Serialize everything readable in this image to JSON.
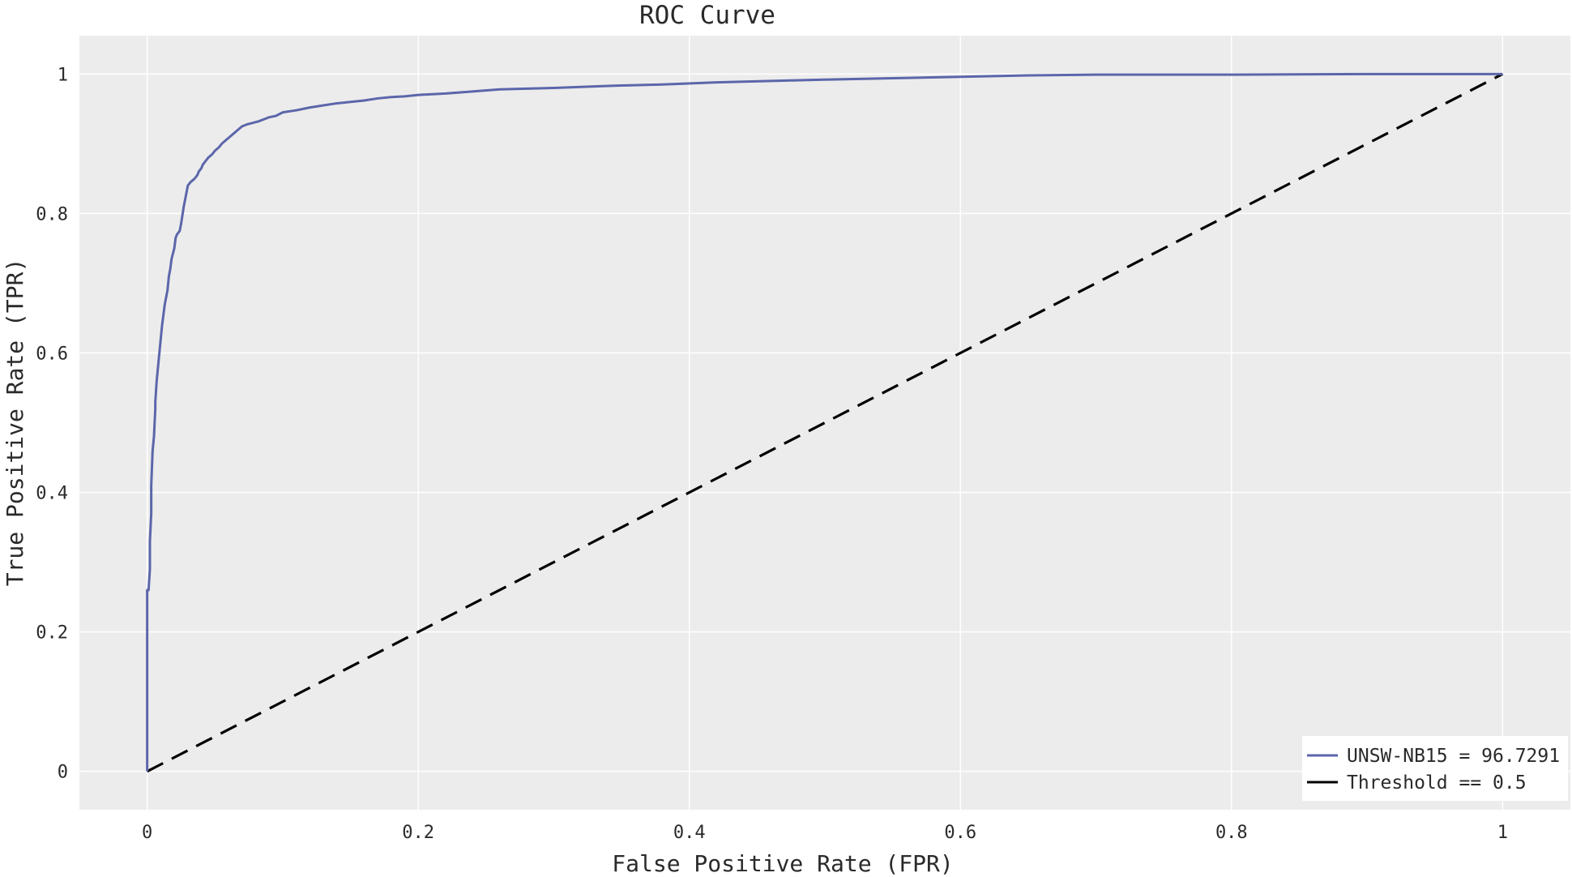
{
  "chart_data": {
    "type": "line",
    "title": "ROC Curve",
    "xlabel": "False Positive Rate (FPR)",
    "ylabel": "True Positive Rate (TPR)",
    "xlim": [
      -0.05,
      1.05
    ],
    "ylim": [
      -0.055,
      1.055
    ],
    "grid": true,
    "legend_position": "bottom-right",
    "background_color": "#ececec",
    "xticks": [
      0,
      0.2,
      0.4,
      0.6,
      0.8,
      1
    ],
    "xtick_labels": [
      "0",
      "0.2",
      "0.4",
      "0.6",
      "0.8",
      "1"
    ],
    "yticks": [
      0,
      0.2,
      0.4,
      0.6,
      0.8,
      1
    ],
    "ytick_labels": [
      "0",
      "0.2",
      "0.4",
      "0.6",
      "0.8",
      "1"
    ],
    "series": [
      {
        "name": "UNSW-NB15 = 96.7291",
        "color": "#5b66aa",
        "style": "solid",
        "x": [
          0,
          0,
          0.001,
          0.002,
          0.002,
          0.003,
          0.003,
          0.004,
          0.005,
          0.006,
          0.006,
          0.007,
          0.008,
          0.009,
          0.01,
          0.011,
          0.012,
          0.013,
          0.015,
          0.016,
          0.017,
          0.018,
          0.02,
          0.021,
          0.022,
          0.024,
          0.025,
          0.027,
          0.028,
          0.03,
          0.032,
          0.035,
          0.037,
          0.038,
          0.04,
          0.041,
          0.043,
          0.045,
          0.048,
          0.05,
          0.053,
          0.055,
          0.058,
          0.061,
          0.064,
          0.067,
          0.07,
          0.074,
          0.078,
          0.082,
          0.086,
          0.09,
          0.095,
          0.1,
          0.11,
          0.12,
          0.13,
          0.14,
          0.15,
          0.16,
          0.17,
          0.18,
          0.19,
          0.2,
          0.22,
          0.24,
          0.26,
          0.3,
          0.34,
          0.38,
          0.42,
          0.46,
          0.5,
          0.55,
          0.6,
          0.65,
          0.7,
          0.8,
          0.9,
          1.0
        ],
        "y": [
          0,
          0.26,
          0.26,
          0.29,
          0.33,
          0.37,
          0.41,
          0.46,
          0.48,
          0.52,
          0.53,
          0.56,
          0.58,
          0.6,
          0.62,
          0.64,
          0.655,
          0.67,
          0.69,
          0.71,
          0.72,
          0.735,
          0.75,
          0.765,
          0.77,
          0.775,
          0.785,
          0.81,
          0.82,
          0.84,
          0.845,
          0.85,
          0.855,
          0.86,
          0.865,
          0.87,
          0.875,
          0.88,
          0.885,
          0.89,
          0.895,
          0.9,
          0.905,
          0.91,
          0.915,
          0.92,
          0.925,
          0.928,
          0.93,
          0.932,
          0.935,
          0.938,
          0.94,
          0.945,
          0.948,
          0.952,
          0.955,
          0.958,
          0.96,
          0.962,
          0.965,
          0.967,
          0.968,
          0.97,
          0.972,
          0.975,
          0.978,
          0.98,
          0.983,
          0.985,
          0.988,
          0.99,
          0.992,
          0.994,
          0.996,
          0.998,
          0.999,
          0.999,
          1.0,
          1.0
        ]
      },
      {
        "name": "Threshold == 0.5",
        "color": "#000000",
        "style": "dashed",
        "x": [
          0,
          1
        ],
        "y": [
          0,
          1
        ]
      }
    ]
  }
}
